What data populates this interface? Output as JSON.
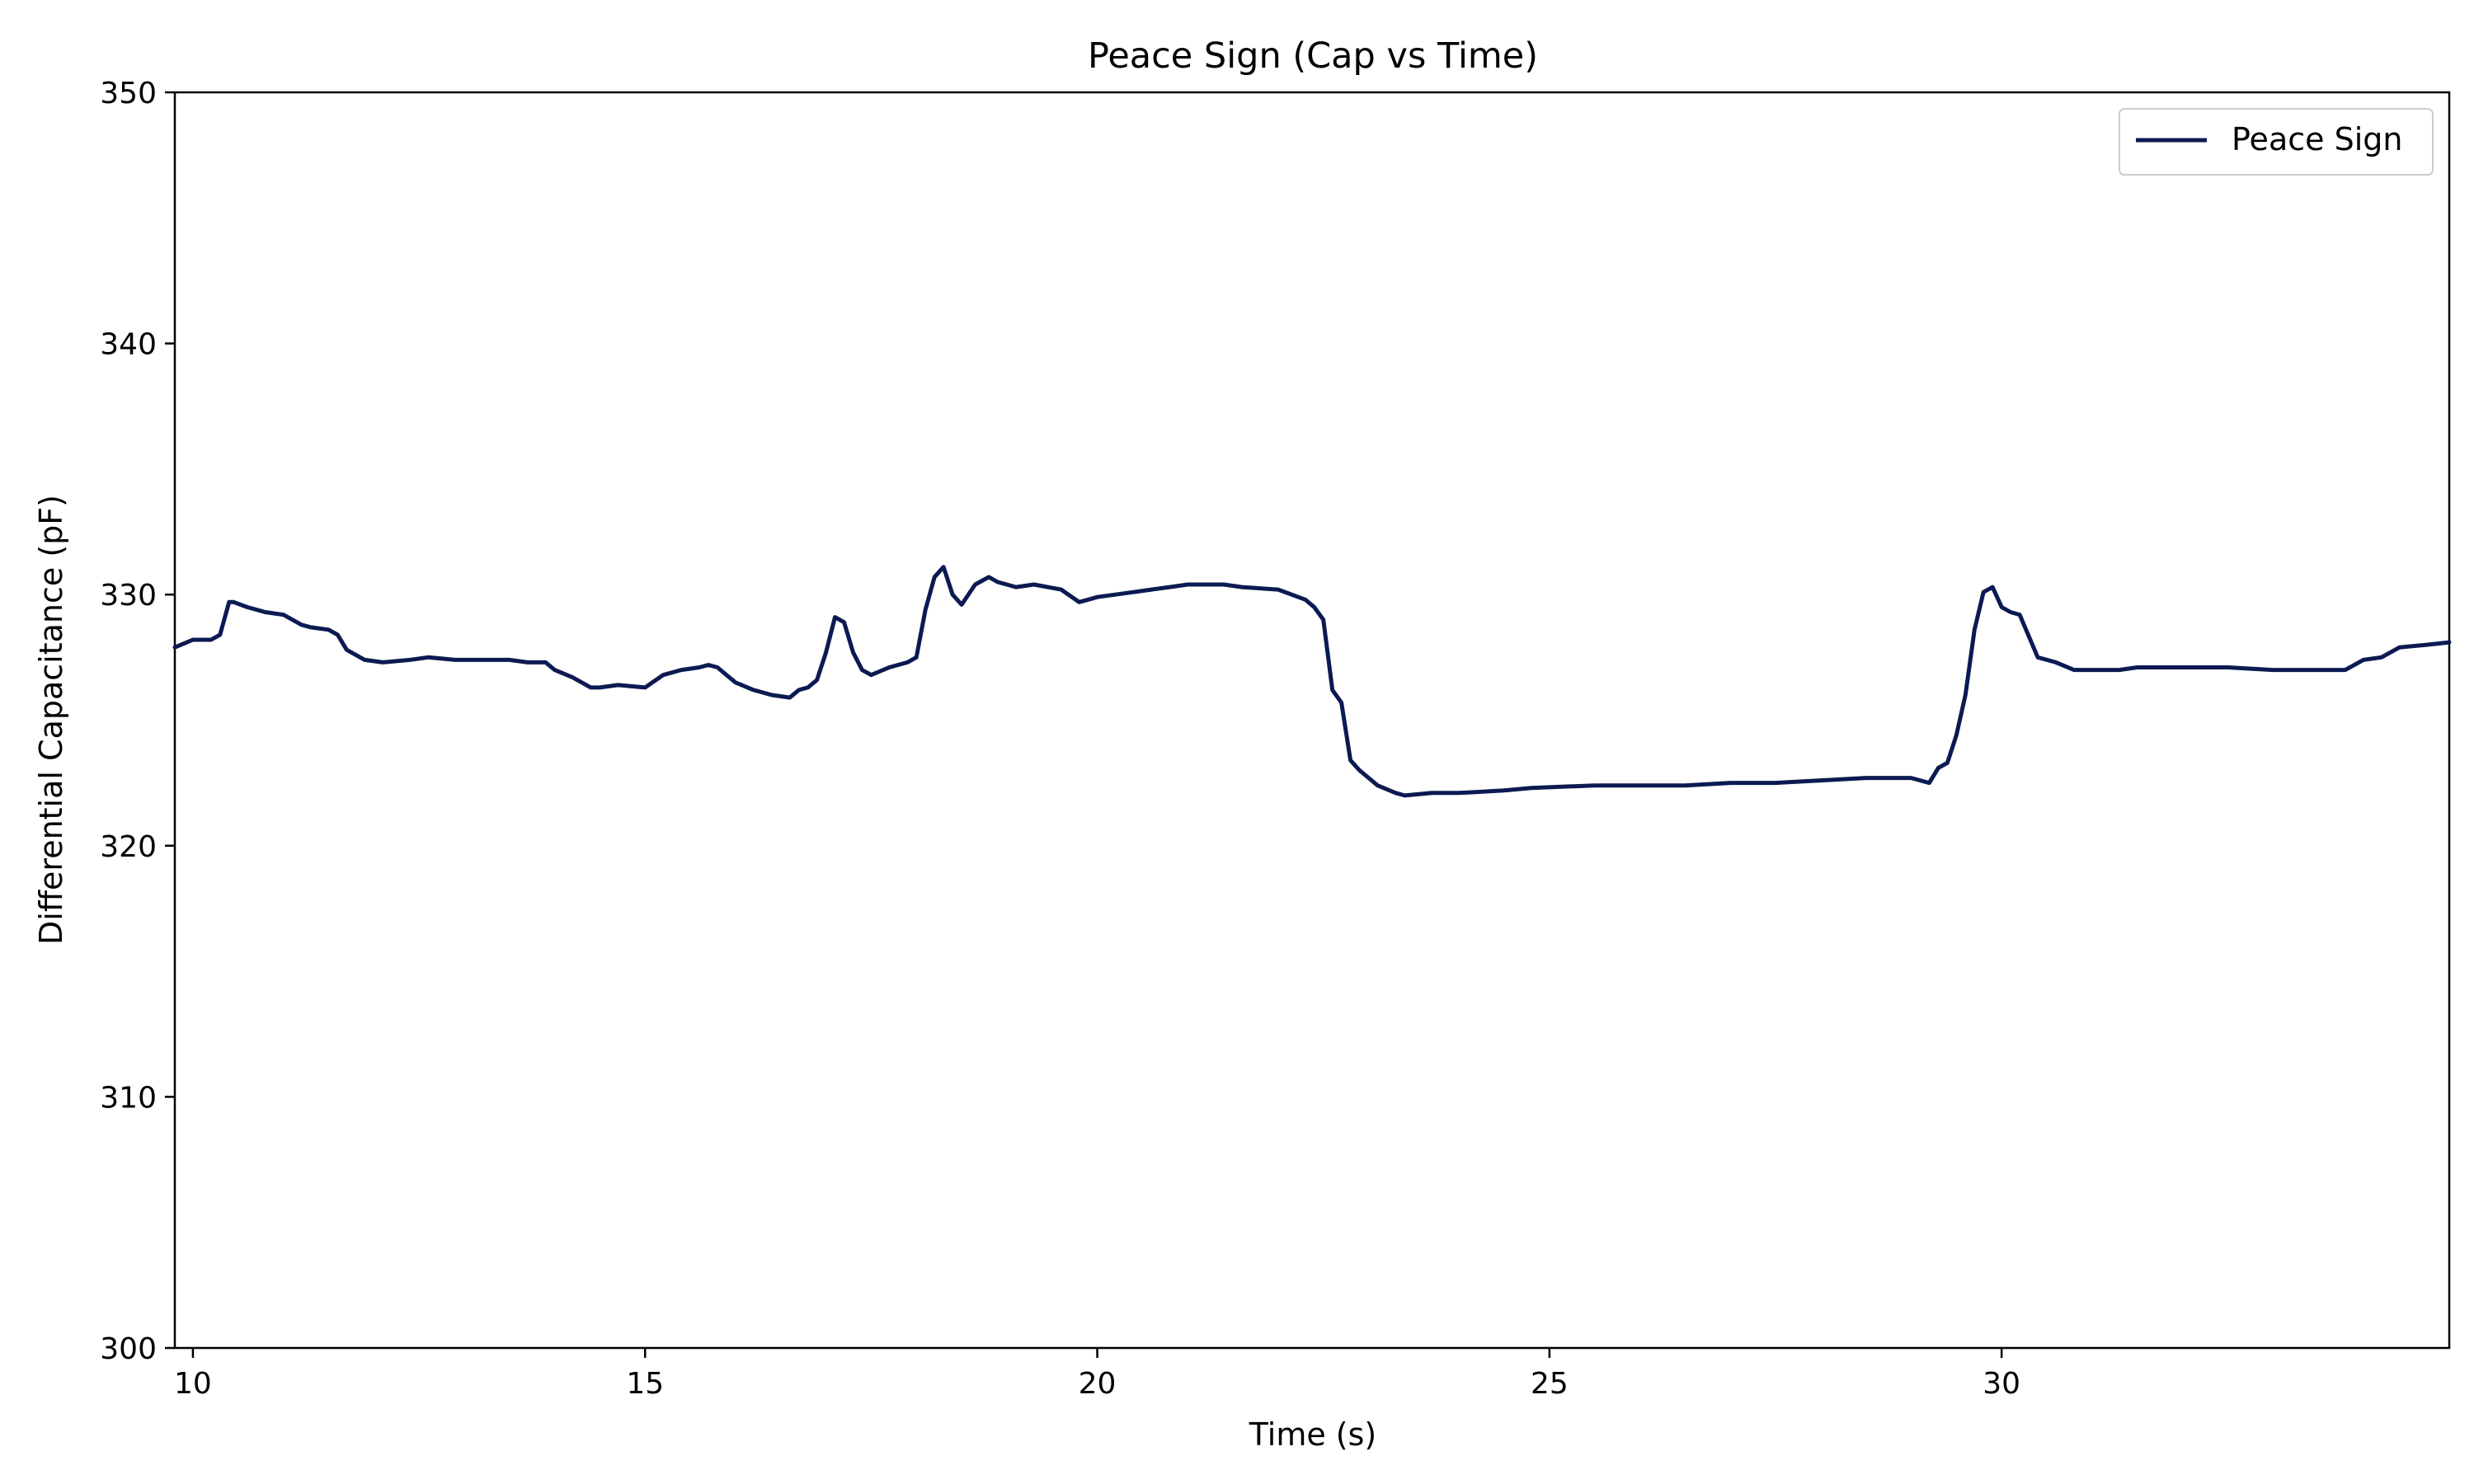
{
  "chart_data": {
    "type": "line",
    "title": "Peace Sign (Cap vs Time)",
    "xlabel": "Time (s)",
    "ylabel": "Differential Capacitance (pF)",
    "xlim": [
      9.8,
      34.95
    ],
    "ylim": [
      300,
      350
    ],
    "xticks": [
      10,
      15,
      20,
      25,
      30
    ],
    "yticks": [
      300,
      310,
      320,
      330,
      340,
      350
    ],
    "xtick_labels": [
      "10",
      "15",
      "20",
      "25",
      "30"
    ],
    "ytick_labels": [
      "300",
      "310",
      "320",
      "330",
      "340",
      "350"
    ],
    "grid": false,
    "legend": {
      "location": "top-right",
      "entries": [
        "Peace Sign"
      ]
    },
    "series": [
      {
        "name": "Peace Sign",
        "color": "#0b1a52",
        "x": [
          9.8,
          10.0,
          10.1,
          10.2,
          10.3,
          10.4,
          10.45,
          10.6,
          10.8,
          11.0,
          11.1,
          11.2,
          11.3,
          11.5,
          11.6,
          11.7,
          11.9,
          12.1,
          12.4,
          12.6,
          12.9,
          13.2,
          13.5,
          13.7,
          13.9,
          14.0,
          14.2,
          14.4,
          14.5,
          14.7,
          15.0,
          15.2,
          15.4,
          15.6,
          15.7,
          15.8,
          15.9,
          16.0,
          16.2,
          16.4,
          16.6,
          16.7,
          16.8,
          16.9,
          17.0,
          17.1,
          17.2,
          17.3,
          17.4,
          17.5,
          17.7,
          17.9,
          18.0,
          18.1,
          18.2,
          18.3,
          18.4,
          18.5,
          18.65,
          18.8,
          18.9,
          19.0,
          19.1,
          19.3,
          19.6,
          19.8,
          19.9,
          20.0,
          20.2,
          20.4,
          20.6,
          20.8,
          21.0,
          21.4,
          21.6,
          22.0,
          22.3,
          22.4,
          22.5,
          22.6,
          22.7,
          22.8,
          22.9,
          23.1,
          23.3,
          23.4,
          23.7,
          24.0,
          24.5,
          24.8,
          25.5,
          26.0,
          26.5,
          27.0,
          27.5,
          28.0,
          28.5,
          29.0,
          29.1,
          29.2,
          29.3,
          29.4,
          29.5,
          29.6,
          29.7,
          29.8,
          29.9,
          30.0,
          30.1,
          30.2,
          30.4,
          30.6,
          30.8,
          31.0,
          31.3,
          31.5,
          32.0,
          32.5,
          33.0,
          33.5,
          33.8,
          34.0,
          34.2,
          34.4,
          34.7,
          34.95
        ],
        "y": [
          327.9,
          328.2,
          328.2,
          328.2,
          328.4,
          329.7,
          329.7,
          329.5,
          329.3,
          329.2,
          329.0,
          328.8,
          328.7,
          328.6,
          328.4,
          327.8,
          327.4,
          327.3,
          327.4,
          327.5,
          327.4,
          327.4,
          327.4,
          327.3,
          327.3,
          327.0,
          326.7,
          326.3,
          326.3,
          326.4,
          326.3,
          326.8,
          327.0,
          327.1,
          327.2,
          327.1,
          326.8,
          326.5,
          326.2,
          326.0,
          325.9,
          326.2,
          326.3,
          326.6,
          327.7,
          329.1,
          328.9,
          327.7,
          327.0,
          326.8,
          327.1,
          327.3,
          327.5,
          329.4,
          330.7,
          331.1,
          330.0,
          329.6,
          330.4,
          330.7,
          330.5,
          330.4,
          330.3,
          330.4,
          330.2,
          329.7,
          329.8,
          329.9,
          330.0,
          330.1,
          330.2,
          330.3,
          330.4,
          330.4,
          330.3,
          330.2,
          329.8,
          329.5,
          329.0,
          326.2,
          325.7,
          323.4,
          323.0,
          322.4,
          322.1,
          322.0,
          322.1,
          322.1,
          322.2,
          322.3,
          322.4,
          322.4,
          322.4,
          322.5,
          322.5,
          322.6,
          322.7,
          322.7,
          322.6,
          322.5,
          323.1,
          323.3,
          324.4,
          326.0,
          328.6,
          330.1,
          330.3,
          329.5,
          329.3,
          329.2,
          327.5,
          327.3,
          327.0,
          327.0,
          327.0,
          327.1,
          327.1,
          327.1,
          327.0,
          327.0,
          327.0,
          327.4,
          327.5,
          327.9,
          328.0,
          328.1
        ],
        "line_width": 5
      }
    ]
  }
}
